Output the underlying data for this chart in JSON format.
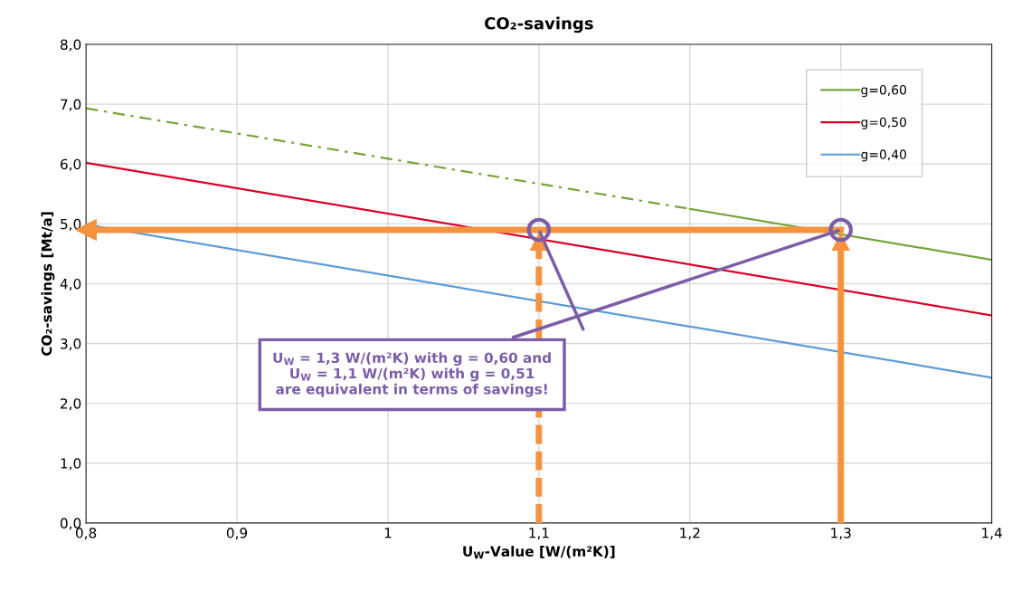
{
  "chart_data": {
    "type": "line",
    "title": "CO₂-savings",
    "xlabel": "U$_{W}$-Value [W/(m²K)]",
    "ylabel": "CO₂-savings [Mt/a]",
    "series": [
      {
        "x": [
          0.8,
          1.2
        ],
        "values": [
          6.93,
          5.25
        ],
        "color": "#77a33c",
        "line_style": "dashed"
      },
      {
        "name": "g=0,60",
        "x": [
          1.2,
          1.4
        ],
        "values": [
          5.25,
          4.4
        ],
        "color": "#77a33c",
        "line_style": "solid"
      },
      {
        "name": "g=0,50",
        "x": [
          0.8,
          1.4
        ],
        "values": [
          6.02,
          3.47
        ],
        "color": "#d9002a",
        "line_style": "solid"
      },
      {
        "name": "g=0,40",
        "x": [
          0.8,
          1.4
        ],
        "values": [
          4.99,
          2.43
        ],
        "color": "#5b9bd5",
        "line_style": "solid"
      },
      {
        "x": [
          0.8,
          1.3
        ],
        "values": [
          4.9,
          4.9
        ],
        "color": "#f5923e",
        "line_style": "solid",
        "marker": "triangle"
      },
      {
        "type": "scatter",
        "x": [
          1.1,
          1.3
        ],
        "values": [
          4.9,
          4.9
        ],
        "color": "#7b5ea7",
        "marker": "circle"
      }
    ],
    "annotations": [
      {
        "text": "U$_{W}$ = 1,3 W/(m²K) with g = 0,60 and\nU$_{W}$ = 1,1 W/(m²K) with g = 0,51\nare equivalent in terms of savings!",
        "x": 1.3,
        "y": 4.9
      }
    ],
    "xlim": [
      0.8,
      1.4
    ],
    "xticks": [
      {
        "value": 0.8,
        "label": "0,8"
      },
      {
        "value": 0.9,
        "label": "0,9"
      },
      1,
      {
        "value": 1.1,
        "label": "1,1"
      },
      {
        "value": 1.2,
        "label": "1,2"
      },
      {
        "value": 1.3,
        "label": "1,3"
      },
      {
        "value": 1.4,
        "label": "1,4"
      }
    ],
    "ylim": [
      0,
      8
    ],
    "yticks": [
      {
        "value": 0,
        "label": "0,0"
      },
      {
        "value": 1,
        "label": "1,0"
      },
      {
        "value": 2,
        "label": "2,0"
      },
      {
        "value": 3,
        "label": "3,0"
      },
      {
        "value": 4,
        "label": "4,0"
      },
      {
        "value": 5,
        "label": "5,0"
      },
      {
        "value": 6,
        "label": "6,0"
      },
      {
        "value": 7,
        "label": "7,0"
      },
      {
        "value": 8,
        "label": "8,0"
      }
    ],
    "grid": true,
    "legend": "top right",
    "marker": "none"
  }
}
